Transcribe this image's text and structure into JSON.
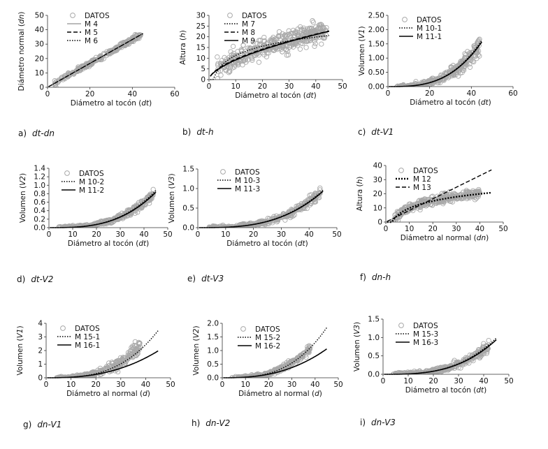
{
  "chart_data": [
    {
      "id": "a",
      "type": "scatter",
      "caption_letter": "a)",
      "caption_italic": "dt-dn",
      "xlabel": "Diámetro  al tocón",
      "xvar": "dt",
      "ylabel": "Diámetro normal",
      "yvar": "dn",
      "xlim": [
        0,
        60
      ],
      "ylim": [
        0,
        50
      ],
      "xticks": [
        "0",
        "20",
        "40",
        "60"
      ],
      "yticks": [
        "0",
        "10",
        "20",
        "30",
        "40",
        "50"
      ],
      "xtick_vals": [
        0,
        20,
        40,
        60
      ],
      "ytick_vals": [
        0,
        10,
        20,
        30,
        40,
        50
      ],
      "scatter": {
        "name": "DATOS",
        "model": "lin",
        "a": 0.83,
        "b": 0,
        "noise": 1.6,
        "xmin": 3,
        "xmax": 44,
        "n": 260
      },
      "series": [
        {
          "name": "M 4",
          "style": "solid-thin",
          "model": "lin",
          "a": 0.83,
          "b": 0,
          "xmax": 45
        },
        {
          "name": "M 5",
          "style": "dashed",
          "model": "lin",
          "a": 0.83,
          "b": 0,
          "xmax": 45
        },
        {
          "name": "M 6",
          "style": "dotted",
          "model": "lin",
          "a": 0.83,
          "b": 0,
          "xmax": 45
        }
      ]
    },
    {
      "id": "b",
      "type": "scatter",
      "caption_letter": "b)",
      "caption_italic": "dt-h",
      "xlabel": "Diámetro  al tocón",
      "xvar": "dt",
      "ylabel": "Altura",
      "yvar": "h",
      "xlim": [
        0,
        50
      ],
      "ylim": [
        0,
        30
      ],
      "xticks": [
        "0",
        "10",
        "20",
        "30",
        "40",
        "50"
      ],
      "yticks": [
        "0",
        "5",
        "10",
        "15",
        "20",
        "25",
        "30"
      ],
      "xtick_vals": [
        0,
        10,
        20,
        30,
        40,
        50
      ],
      "ytick_vals": [
        0,
        5,
        10,
        15,
        20,
        25,
        30
      ],
      "scatter": {
        "name": "DATOS",
        "model": "powsat",
        "a": 2.2,
        "b": 0.62,
        "noise": 4.5,
        "xmin": 3,
        "xmax": 44,
        "n": 420
      },
      "series": [
        {
          "name": "M 7",
          "style": "dotted",
          "model": "log",
          "a": 6.2,
          "b": -3,
          "xmax": 45
        },
        {
          "name": "M 8",
          "style": "dashed",
          "model": "pow",
          "a": 2.5,
          "b": 0.58,
          "xmax": 45
        },
        {
          "name": "M 9",
          "style": "solid",
          "model": "pow",
          "a": 2.3,
          "b": 0.6,
          "xmax": 45
        }
      ]
    },
    {
      "id": "c",
      "type": "scatter",
      "caption_letter": "c)",
      "caption_italic": "dt-V1",
      "xlabel": "Diámetro  al tocón",
      "xvar": "dt",
      "ylabel": "Volumen",
      "yvar": "V1",
      "xlim": [
        0,
        60
      ],
      "ylim": [
        0,
        2.5
      ],
      "xticks": [
        "0",
        "20",
        "40",
        "60"
      ],
      "yticks": [
        "0.00",
        "0.50",
        "1.00",
        "1.50",
        "2.00",
        "2.50"
      ],
      "xtick_vals": [
        0,
        20,
        40,
        60
      ],
      "ytick_vals": [
        0,
        0.5,
        1.0,
        1.5,
        2.0,
        2.5
      ],
      "scatter": {
        "name": "DATOS",
        "model": "cube",
        "a": 1.72e-05,
        "b": 3,
        "noise": 0.2,
        "xmin": 4,
        "xmax": 44,
        "n": 320
      },
      "series": [
        {
          "name": "M 10-1",
          "style": "dotted",
          "model": "cube",
          "a": 1.78e-05,
          "b": 3,
          "xmax": 45
        },
        {
          "name": "M 11-1",
          "style": "solid",
          "model": "cube",
          "a": 1.72e-05,
          "b": 3,
          "xmax": 45
        }
      ]
    },
    {
      "id": "d",
      "type": "scatter",
      "caption_letter": "d)",
      "caption_italic": "dt-V2",
      "xlabel": "Diámetro  al tocón",
      "xvar": "dt",
      "ylabel": "Volumen",
      "yvar": "V2",
      "xlim": [
        0,
        50
      ],
      "ylim": [
        0,
        1.4
      ],
      "xticks": [
        "0",
        "10",
        "20",
        "30",
        "40",
        "50"
      ],
      "yticks": [
        "0.0",
        "0.2",
        "0.4",
        "0.6",
        "0.8",
        "1.0",
        "1.2",
        "1.4"
      ],
      "xtick_vals": [
        0,
        10,
        20,
        30,
        40,
        50
      ],
      "ytick_vals": [
        0,
        0.2,
        0.4,
        0.6,
        0.8,
        1.0,
        1.2,
        1.4
      ],
      "scatter": {
        "name": "DATOS",
        "model": "cube",
        "a": 9.2e-06,
        "b": 3,
        "noise": 0.1,
        "xmin": 4,
        "xmax": 44,
        "n": 320
      },
      "series": [
        {
          "name": "M 10-2",
          "style": "dotted",
          "model": "cube",
          "a": 9.6e-06,
          "b": 3,
          "xmax": 45
        },
        {
          "name": "M 11-2",
          "style": "solid",
          "model": "cube",
          "a": 9.2e-06,
          "b": 3,
          "xmax": 45
        }
      ]
    },
    {
      "id": "e",
      "type": "scatter",
      "caption_letter": "e)",
      "caption_italic": "dt-V3",
      "xlabel": "Diámetro  al tocón",
      "xvar": "dt",
      "ylabel": "Volumen",
      "yvar": "V3",
      "xlim": [
        0,
        50
      ],
      "ylim": [
        0,
        1.5
      ],
      "xticks": [
        "0",
        "10",
        "20",
        "30",
        "40",
        "50"
      ],
      "yticks": [
        "0.0",
        "0.5",
        "1.0",
        "1.5"
      ],
      "xtick_vals": [
        0,
        10,
        20,
        30,
        40,
        50
      ],
      "ytick_vals": [
        0,
        0.5,
        1.0,
        1.5
      ],
      "scatter": {
        "name": "DATOS",
        "model": "cube",
        "a": 1.02e-05,
        "b": 3,
        "noise": 0.12,
        "xmin": 4,
        "xmax": 44,
        "n": 320
      },
      "series": [
        {
          "name": "M 10-3",
          "style": "dotted",
          "model": "cube",
          "a": 1.05e-05,
          "b": 3,
          "xmax": 45
        },
        {
          "name": "M 11-3",
          "style": "solid",
          "model": "cube",
          "a": 1.02e-05,
          "b": 3,
          "xmax": 45
        }
      ]
    },
    {
      "id": "f",
      "type": "scatter",
      "caption_letter": "f)",
      "caption_italic": "dn-h",
      "xlabel": "Diámetro  al normal",
      "xvar": "dn",
      "ylabel": "Altura",
      "yvar": "h",
      "xlim": [
        0,
        50
      ],
      "ylim": [
        0,
        40
      ],
      "xticks": [
        "0",
        "10",
        "20",
        "30",
        "40",
        "50"
      ],
      "yticks": [
        "0",
        "10",
        "20",
        "30",
        "40"
      ],
      "xtick_vals": [
        0,
        10,
        20,
        30,
        40,
        50
      ],
      "ytick_vals": [
        0,
        10,
        20,
        30,
        40
      ],
      "scatter": {
        "name": "DATOS",
        "model": "log",
        "a": 7.3,
        "b": -7,
        "noise": 3.2,
        "xmin": 3,
        "xmax": 40,
        "n": 360
      },
      "series": [
        {
          "name": "M 12",
          "style": "dotted-thick",
          "model": "log",
          "a": 7.3,
          "b": -7,
          "xmax": 45
        },
        {
          "name": "M 13",
          "style": "dashed",
          "model": "lin",
          "a": 0.82,
          "b": 0,
          "xmax": 45
        }
      ]
    },
    {
      "id": "g",
      "type": "scatter",
      "caption_letter": "g)",
      "caption_italic": "dn-V1",
      "xlabel": "Diámetro  al normal",
      "xvar": "d",
      "ylabel": "Volumen",
      "yvar": "V1",
      "xlim": [
        0,
        50
      ],
      "ylim": [
        0,
        4
      ],
      "xticks": [
        "0",
        "10",
        "20",
        "30",
        "40",
        "50"
      ],
      "yticks": [
        "0",
        "1",
        "2",
        "3",
        "4"
      ],
      "xtick_vals": [
        0,
        10,
        20,
        30,
        40,
        50
      ],
      "ytick_vals": [
        0,
        1,
        2,
        3,
        4
      ],
      "scatter": {
        "name": "DATOS",
        "model": "cube",
        "a": 4.2e-05,
        "b": 3,
        "noise": 0.25,
        "xmin": 4,
        "xmax": 38,
        "n": 300
      },
      "series": [
        {
          "name": "M 15-1",
          "style": "dotted",
          "model": "cube",
          "a": 3.8e-05,
          "b": 3,
          "xmax": 45
        },
        {
          "name": "M 16-1",
          "style": "solid",
          "model": "power",
          "a": 0.00012,
          "b": 2.55,
          "xmax": 45
        }
      ]
    },
    {
      "id": "h",
      "type": "scatter",
      "caption_letter": "h)",
      "caption_italic": "dn-V2",
      "xlabel": "Diámetro  al normal",
      "xvar": "d",
      "ylabel": "Volumen",
      "yvar": "V2",
      "xlim": [
        0,
        50
      ],
      "ylim": [
        0,
        2.0
      ],
      "xticks": [
        "0",
        "10",
        "20",
        "30",
        "40",
        "50"
      ],
      "yticks": [
        "0.0",
        "0.5",
        "1.0",
        "1.5",
        "2.0"
      ],
      "xtick_vals": [
        0,
        10,
        20,
        30,
        40,
        50
      ],
      "ytick_vals": [
        0,
        0.5,
        1.0,
        1.5,
        2.0
      ],
      "scatter": {
        "name": "DATOS",
        "model": "cube",
        "a": 2.05e-05,
        "b": 3,
        "noise": 0.12,
        "xmin": 4,
        "xmax": 38,
        "n": 300
      },
      "series": [
        {
          "name": "M 15-2",
          "style": "dotted",
          "model": "cube",
          "a": 2.02e-05,
          "b": 3,
          "xmax": 45
        },
        {
          "name": "M 16-2",
          "style": "solid",
          "model": "power",
          "a": 6.2e-05,
          "b": 2.56,
          "xmax": 45
        }
      ]
    },
    {
      "id": "i",
      "type": "scatter",
      "caption_letter": "i)",
      "caption_italic": "dn-V3",
      "xlabel": "Diámetro  al tocón",
      "xvar": "dt",
      "ylabel": "Volumen",
      "yvar": "V3",
      "xlim": [
        0,
        50
      ],
      "ylim": [
        0,
        1.5
      ],
      "xticks": [
        "0",
        "10",
        "20",
        "30",
        "40",
        "50"
      ],
      "yticks": [
        "0.0",
        "0.5",
        "1.0",
        "1.5"
      ],
      "xtick_vals": [
        0,
        10,
        20,
        30,
        40,
        50
      ],
      "ytick_vals": [
        0,
        0.5,
        1.0,
        1.5
      ],
      "scatter": {
        "name": "DATOS",
        "model": "cube",
        "a": 1.03e-05,
        "b": 3,
        "noise": 0.13,
        "xmin": 4,
        "xmax": 42,
        "n": 320
      },
      "series": [
        {
          "name": "M 15-3",
          "style": "dotted",
          "model": "cube",
          "a": 1.08e-05,
          "b": 3,
          "xmax": 45
        },
        {
          "name": "M 16-3",
          "style": "solid",
          "model": "cube",
          "a": 1.03e-05,
          "b": 3,
          "xmax": 45
        }
      ]
    }
  ]
}
